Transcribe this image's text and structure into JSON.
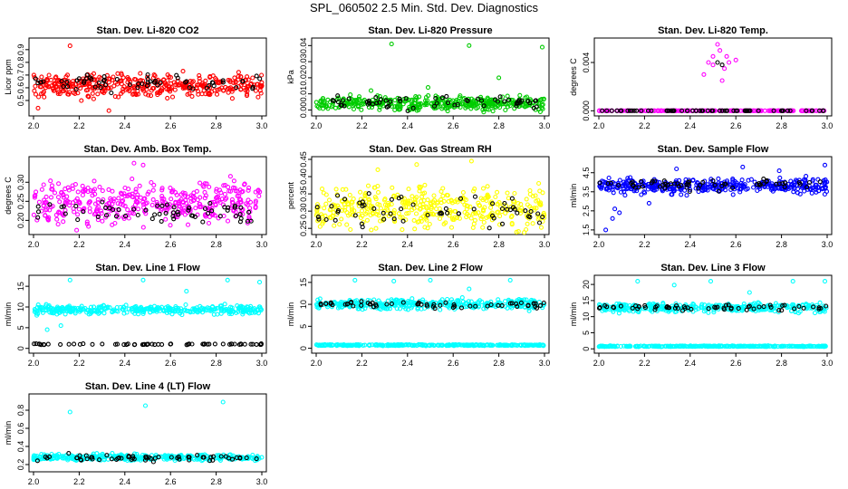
{
  "figure_title": "SPL_060502  2.5 Min. Std. Dev. Diagnostics",
  "colors": {
    "red": "#ff0000",
    "green": "#00cc00",
    "magenta": "#ff00ff",
    "yellow": "#ffff00",
    "blue": "#0000ff",
    "cyan": "#00ffff",
    "black": "#000000"
  },
  "chart_data": [
    {
      "type": "scatter",
      "title": "Stan. Dev. Li-820 CO2",
      "xlabel": "",
      "ylabel": "Licor ppm",
      "xlim": [
        2.0,
        3.0
      ],
      "ylim": [
        0.4,
        0.97
      ],
      "xticks": [
        "2.0",
        "2.2",
        "2.4",
        "2.6",
        "2.8",
        "3.0"
      ],
      "yticks": [
        "0.5",
        "0.6",
        "0.7",
        "0.8",
        "0.9"
      ],
      "series": [
        {
          "name": "other",
          "color": "red",
          "n": 400,
          "base": 0.62,
          "jitter": 0.07,
          "outliers": [
            [
              2.16,
              0.93
            ],
            [
              2.33,
              0.42
            ],
            [
              2.02,
              0.44
            ]
          ]
        },
        {
          "name": "SPL",
          "color": "black",
          "n": 60,
          "base": 0.64,
          "jitter": 0.05,
          "outliers": []
        }
      ]
    },
    {
      "type": "scatter",
      "title": "Stan. Dev. Li-820 Pressure",
      "xlabel": "",
      "ylabel": "kPa",
      "xlim": [
        2.0,
        3.0
      ],
      "ylim": [
        -0.002,
        0.043
      ],
      "xticks": [
        "2.0",
        "2.2",
        "2.4",
        "2.6",
        "2.8",
        "3.0"
      ],
      "yticks": [
        "0.00",
        "0.01",
        "0.02",
        "0.03",
        "0.04"
      ],
      "series": [
        {
          "name": "other",
          "color": "green",
          "n": 400,
          "base": 0.004,
          "jitter": 0.003,
          "outliers": [
            [
              2.33,
              0.041
            ],
            [
              2.67,
              0.04
            ],
            [
              2.99,
              0.039
            ],
            [
              2.49,
              0.014
            ],
            [
              2.8,
              0.02
            ],
            [
              2.24,
              0.012
            ]
          ]
        },
        {
          "name": "SPL",
          "color": "black",
          "n": 60,
          "base": 0.005,
          "jitter": 0.003,
          "outliers": []
        }
      ]
    },
    {
      "type": "scatter",
      "title": "Stan. Dev. Li-820 Temp.",
      "xlabel": "",
      "ylabel": "degrees C",
      "xlim": [
        2.0,
        3.0
      ],
      "ylim": [
        -0.0002,
        0.0058
      ],
      "xticks": [
        "2.0",
        "2.2",
        "2.4",
        "2.6",
        "2.8",
        "3.0"
      ],
      "yticks": [
        "0.000",
        "0.004"
      ],
      "series": [
        {
          "name": "other",
          "color": "magenta",
          "n": 200,
          "base": 0.0,
          "jitter": 0.0,
          "outliers": [
            [
              2.48,
              0.004
            ],
            [
              2.5,
              0.0045
            ],
            [
              2.52,
              0.0055
            ],
            [
              2.53,
              0.005
            ],
            [
              2.55,
              0.0035
            ],
            [
              2.57,
              0.004
            ],
            [
              2.5,
              0.0038
            ],
            [
              2.6,
              0.0042
            ],
            [
              2.46,
              0.003
            ],
            [
              2.54,
              0.0025
            ],
            [
              2.56,
              0.0045
            ]
          ]
        },
        {
          "name": "SPL",
          "color": "black",
          "n": 60,
          "base": 0.0,
          "jitter": 0.0,
          "outliers": [
            [
              2.52,
              0.004
            ],
            [
              2.54,
              0.0038
            ]
          ]
        }
      ]
    },
    {
      "type": "scatter",
      "title": "Stan. Dev. Amb. Box Temp.",
      "xlabel": "",
      "ylabel": "degrees C",
      "xlim": [
        2.0,
        3.0
      ],
      "ylim": [
        0.17,
        0.36
      ],
      "xticks": [
        "2.0",
        "2.2",
        "2.4",
        "2.6",
        "2.8",
        "3.0"
      ],
      "yticks": [
        "0.20",
        "0.25",
        "0.30"
      ],
      "series": [
        {
          "name": "other",
          "color": "magenta",
          "n": 400,
          "base": 0.245,
          "jitter": 0.04,
          "outliers": [
            [
              2.44,
              0.35
            ],
            [
              2.48,
              0.345
            ]
          ]
        },
        {
          "name": "SPL",
          "color": "black",
          "n": 60,
          "base": 0.22,
          "jitter": 0.02,
          "outliers": []
        }
      ]
    },
    {
      "type": "scatter",
      "title": "Stan. Dev. Gas Stream RH",
      "xlabel": "",
      "ylabel": "percent",
      "xlim": [
        2.0,
        3.0
      ],
      "ylim": [
        0.24,
        0.45
      ],
      "xticks": [
        "2.0",
        "2.2",
        "2.4",
        "2.6",
        "2.8",
        "3.0"
      ],
      "yticks": [
        "0.25",
        "0.30",
        "0.35",
        "0.40",
        "0.45"
      ],
      "series": [
        {
          "name": "other",
          "color": "yellow",
          "n": 400,
          "base": 0.31,
          "jitter": 0.045,
          "outliers": [
            [
              2.44,
              0.435
            ],
            [
              2.68,
              0.445
            ],
            [
              2.27,
              0.42
            ]
          ]
        },
        {
          "name": "SPL",
          "color": "black",
          "n": 60,
          "base": 0.3,
          "jitter": 0.04,
          "outliers": []
        }
      ]
    },
    {
      "type": "scatter",
      "title": "Stan. Dev. Sample Flow",
      "xlabel": "",
      "ylabel": "ml/min",
      "xlim": [
        2.0,
        3.0
      ],
      "ylim": [
        1.4,
        5.2
      ],
      "xticks": [
        "2.0",
        "2.2",
        "2.4",
        "2.6",
        "2.8",
        "3.0"
      ],
      "yticks": [
        "1.5",
        "2.5",
        "3.5",
        "4.5"
      ],
      "series": [
        {
          "name": "other",
          "color": "blue",
          "n": 400,
          "base": 3.8,
          "jitter": 0.3,
          "outliers": [
            [
              2.03,
              1.5
            ],
            [
              2.06,
              2.1
            ],
            [
              2.07,
              2.6
            ],
            [
              2.22,
              2.9
            ],
            [
              2.09,
              2.4
            ],
            [
              2.99,
              4.9
            ],
            [
              2.34,
              4.7
            ],
            [
              2.63,
              4.8
            ],
            [
              2.79,
              4.6
            ]
          ]
        },
        {
          "name": "SPL",
          "color": "black",
          "n": 60,
          "base": 3.9,
          "jitter": 0.25,
          "outliers": []
        }
      ]
    },
    {
      "type": "scatter",
      "title": "Stan. Dev. Line 1 Flow",
      "xlabel": "",
      "ylabel": "ml/min",
      "xlim": [
        2.0,
        3.0
      ],
      "ylim": [
        -0.5,
        17
      ],
      "xticks": [
        "2.0",
        "2.2",
        "2.4",
        "2.6",
        "2.8",
        "3.0"
      ],
      "yticks": [
        "0",
        "5",
        "10",
        "15"
      ],
      "series": [
        {
          "name": "other",
          "color": "cyan",
          "n": 350,
          "base": 9.3,
          "jitter": 0.8,
          "outliers": [
            [
              2.16,
              16.5
            ],
            [
              2.48,
              16.5
            ],
            [
              2.99,
              16
            ],
            [
              2.06,
              4.5
            ],
            [
              2.12,
              5.5
            ],
            [
              2.85,
              16.5
            ],
            [
              2.67,
              13.8
            ]
          ]
        },
        {
          "name": "SPL",
          "color": "black",
          "n": 60,
          "base": 1.0,
          "jitter": 0.1,
          "outliers": []
        }
      ]
    },
    {
      "type": "scatter",
      "title": "Stan. Dev. Line 2 Flow",
      "xlabel": "",
      "ylabel": "ml/min",
      "xlim": [
        2.0,
        3.0
      ],
      "ylim": [
        -0.5,
        16
      ],
      "xticks": [
        "2.0",
        "2.2",
        "2.4",
        "2.6",
        "2.8",
        "3.0"
      ],
      "yticks": [
        "0",
        "5",
        "10",
        "15"
      ],
      "series": [
        {
          "name": "other",
          "color": "cyan",
          "n": 350,
          "base": 10.0,
          "jitter": 0.9,
          "outliers": [
            [
              2.17,
              15.5
            ],
            [
              2.34,
              15.3
            ],
            [
              2.5,
              15.5
            ],
            [
              2.85,
              15.5
            ],
            [
              2.67,
              13.5
            ]
          ]
        },
        {
          "name": "other-low",
          "color": "cyan",
          "n": 300,
          "base": 0.7,
          "jitter": 0.1,
          "outliers": []
        },
        {
          "name": "SPL",
          "color": "black",
          "n": 60,
          "base": 10.0,
          "jitter": 0.6,
          "outliers": []
        }
      ]
    },
    {
      "type": "scatter",
      "title": "Stan. Dev. Line 3 Flow",
      "xlabel": "",
      "ylabel": "ml/min",
      "xlim": [
        2.0,
        3.0
      ],
      "ylim": [
        -0.5,
        22
      ],
      "xticks": [
        "2.0",
        "2.2",
        "2.4",
        "2.6",
        "2.8",
        "3.0"
      ],
      "yticks": [
        "0",
        "5",
        "10",
        "15",
        "20"
      ],
      "series": [
        {
          "name": "other",
          "color": "cyan",
          "n": 350,
          "base": 12.8,
          "jitter": 1.0,
          "outliers": [
            [
              2.17,
              21
            ],
            [
              2.33,
              19.8
            ],
            [
              2.49,
              21
            ],
            [
              2.85,
              21
            ],
            [
              2.99,
              21
            ],
            [
              2.66,
              17.5
            ]
          ]
        },
        {
          "name": "other-low",
          "color": "cyan",
          "n": 300,
          "base": 0.8,
          "jitter": 0.1,
          "outliers": []
        },
        {
          "name": "SPL",
          "color": "black",
          "n": 60,
          "base": 12.8,
          "jitter": 0.7,
          "outliers": []
        }
      ]
    },
    {
      "type": "scatter",
      "title": "Stan. Dev. Line 4 (LT) Flow",
      "xlabel": "",
      "ylabel": "ml/min",
      "xlim": [
        2.0,
        3.0
      ],
      "ylim": [
        0.15,
        0.95
      ],
      "xticks": [
        "2.0",
        "2.2",
        "2.4",
        "2.6",
        "2.8",
        "3.0"
      ],
      "yticks": [
        "0.2",
        "0.4",
        "0.6",
        "0.8"
      ],
      "series": [
        {
          "name": "other",
          "color": "cyan",
          "n": 350,
          "base": 0.28,
          "jitter": 0.025,
          "outliers": [
            [
              2.16,
              0.78
            ],
            [
              2.49,
              0.85
            ],
            [
              2.83,
              0.89
            ]
          ]
        },
        {
          "name": "SPL",
          "color": "black",
          "n": 60,
          "base": 0.27,
          "jitter": 0.03,
          "outliers": []
        }
      ]
    }
  ]
}
